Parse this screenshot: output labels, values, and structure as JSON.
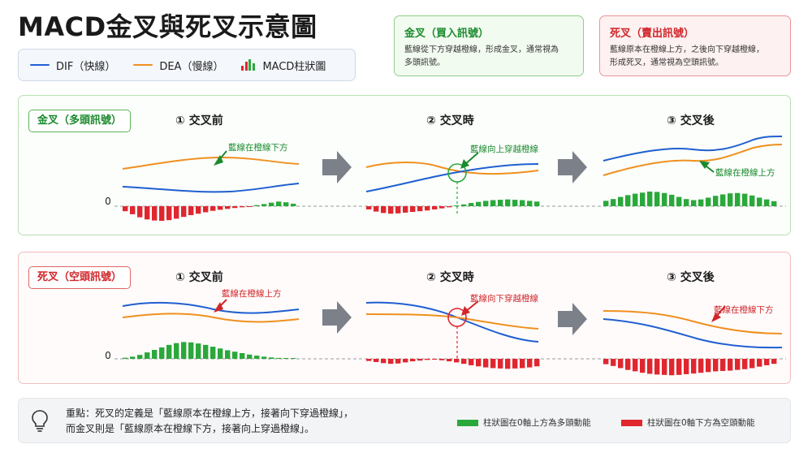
{
  "title": "MACD金叉與死叉示意圖",
  "colors": {
    "dif": "#1f5fd1",
    "dea": "#f0901f",
    "hist_pos": "#2aa83a",
    "hist_neg": "#e0262e",
    "gold_accent": "#1b8a2e",
    "death_accent": "#d0262a"
  },
  "legend": {
    "dif": "DIF（快線）",
    "dea": "DEA（慢線）",
    "macd": "MACD柱狀圖"
  },
  "callouts": {
    "gold": {
      "title": "金叉（買入訊號）",
      "text": [
        "藍線從下方穿越橙線，形成金叉，通常視為",
        "多頭訊號。"
      ]
    },
    "death": {
      "title": "死叉（賣出訊號）",
      "text": [
        "藍線原本在橙線上方，之後向下穿越橙線，",
        "形成死叉，通常視為空頭訊號。"
      ]
    }
  },
  "panels": {
    "gold": {
      "badge": "金叉（多頭訊號）",
      "steps": [
        "① 交叉前",
        "② 交叉時",
        "③ 交叉後"
      ],
      "zero_label": "0",
      "annotations": [
        "藍線在橙線下方",
        "藍線向上穿越橙線",
        "藍線在橙線上方"
      ],
      "histogram": [
        [
          -0.28,
          -0.45,
          -0.62,
          -0.74,
          -0.8,
          -0.82,
          -0.78,
          -0.7,
          -0.6,
          -0.5,
          -0.42,
          -0.34,
          -0.26,
          -0.2,
          -0.15,
          -0.1,
          -0.06,
          -0.02,
          0.06,
          0.12,
          0.2,
          0.26,
          0.22,
          0.14
        ],
        [
          -0.18,
          -0.3,
          -0.38,
          -0.42,
          -0.4,
          -0.36,
          -0.32,
          -0.28,
          -0.24,
          -0.18,
          -0.12,
          -0.06,
          0.04,
          0.1,
          0.18,
          0.24,
          0.3,
          0.34,
          0.36,
          0.38,
          0.36,
          0.34,
          0.3,
          0.26
        ],
        [
          0.3,
          0.4,
          0.52,
          0.62,
          0.7,
          0.76,
          0.82,
          0.8,
          0.74,
          0.64,
          0.52,
          0.4,
          0.34,
          0.38,
          0.48,
          0.58,
          0.66,
          0.72,
          0.74,
          0.7,
          0.6,
          0.48,
          0.38,
          0.28
        ]
      ]
    },
    "death": {
      "badge": "死叉（空頭訊號）",
      "steps": [
        "① 交叉前",
        "② 交叉時",
        "③ 交叉後"
      ],
      "zero_label": "0",
      "annotations": [
        "藍線在橙線上方",
        "藍線向下穿越橙線",
        "藍線在橙線下方"
      ],
      "histogram": [
        [
          0.06,
          0.12,
          0.22,
          0.36,
          0.5,
          0.64,
          0.78,
          0.88,
          0.94,
          0.92,
          0.86,
          0.78,
          0.68,
          0.58,
          0.48,
          0.4,
          0.32,
          0.24,
          0.18,
          0.12,
          0.08,
          0.05,
          0.03,
          0.02
        ],
        [
          -0.12,
          -0.18,
          -0.24,
          -0.28,
          -0.26,
          -0.2,
          -0.14,
          -0.1,
          -0.06,
          -0.04,
          -0.08,
          -0.14,
          -0.2,
          -0.28,
          -0.36,
          -0.42,
          -0.48,
          -0.52,
          -0.54,
          -0.56,
          -0.54,
          -0.52,
          -0.48,
          -0.42
        ],
        [
          -0.3,
          -0.4,
          -0.52,
          -0.62,
          -0.7,
          -0.78,
          -0.84,
          -0.88,
          -0.9,
          -0.92,
          -0.9,
          -0.86,
          -0.82,
          -0.78,
          -0.74,
          -0.7,
          -0.68,
          -0.66,
          -0.62,
          -0.58,
          -0.52,
          -0.44,
          -0.36,
          -0.28
        ]
      ]
    }
  },
  "bottom": {
    "key_points": [
      "重點：死叉的定義是「藍線原本在橙線上方，接著向下穿過橙線」，",
      "而金叉則是「藍線原本在橙線下方，接著向上穿過橙線」。"
    ],
    "hist_pos_note": "柱狀圖在0軸上方為多頭動能",
    "hist_neg_note": "柱狀圖在0軸下方為空頭動能"
  }
}
